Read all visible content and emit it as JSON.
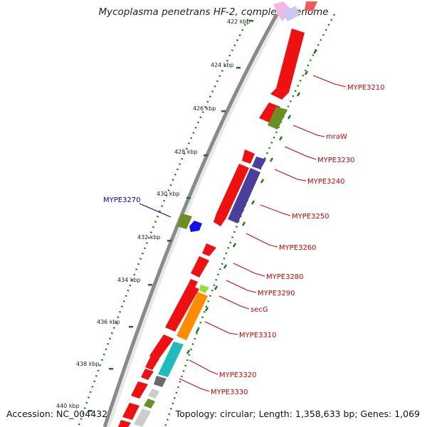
{
  "title": "Mycoplasma penetrans HF-2, complete genome",
  "accession_text": "Accession: NC_004432",
  "summary_text": "Topology: circular; Length: 1,358,633 bp; Genes: 1,069",
  "colors": {
    "forward_label": "#d40000",
    "reverse_label": "#0000cc",
    "backbone": "#888888",
    "tick": "#1a7a1a"
  },
  "kbp_ticks": [
    {
      "label": "422 kbp"
    },
    {
      "label": "424 kbp"
    },
    {
      "label": "426 kbp"
    },
    {
      "label": "428 kbp"
    },
    {
      "label": "430 kbp"
    },
    {
      "label": "432 kbp"
    },
    {
      "label": "434 kbp"
    },
    {
      "label": "436 kbp"
    },
    {
      "label": "438 kbp"
    },
    {
      "label": "440 kbp"
    }
  ],
  "gene_labels_forward": [
    {
      "name": "MYPE3210"
    },
    {
      "name": "mraW"
    },
    {
      "name": "MYPE3230"
    },
    {
      "name": "MYPE3240"
    },
    {
      "name": "MYPE3250"
    },
    {
      "name": "MYPE3260"
    },
    {
      "name": "MYPE3280"
    },
    {
      "name": "MYPE3290"
    },
    {
      "name": "secG"
    },
    {
      "name": "MYPE3310"
    },
    {
      "name": "MYPE3320"
    },
    {
      "name": "MYPE3330"
    }
  ],
  "gene_labels_reverse": [
    {
      "name": "MYPE3270"
    }
  ]
}
